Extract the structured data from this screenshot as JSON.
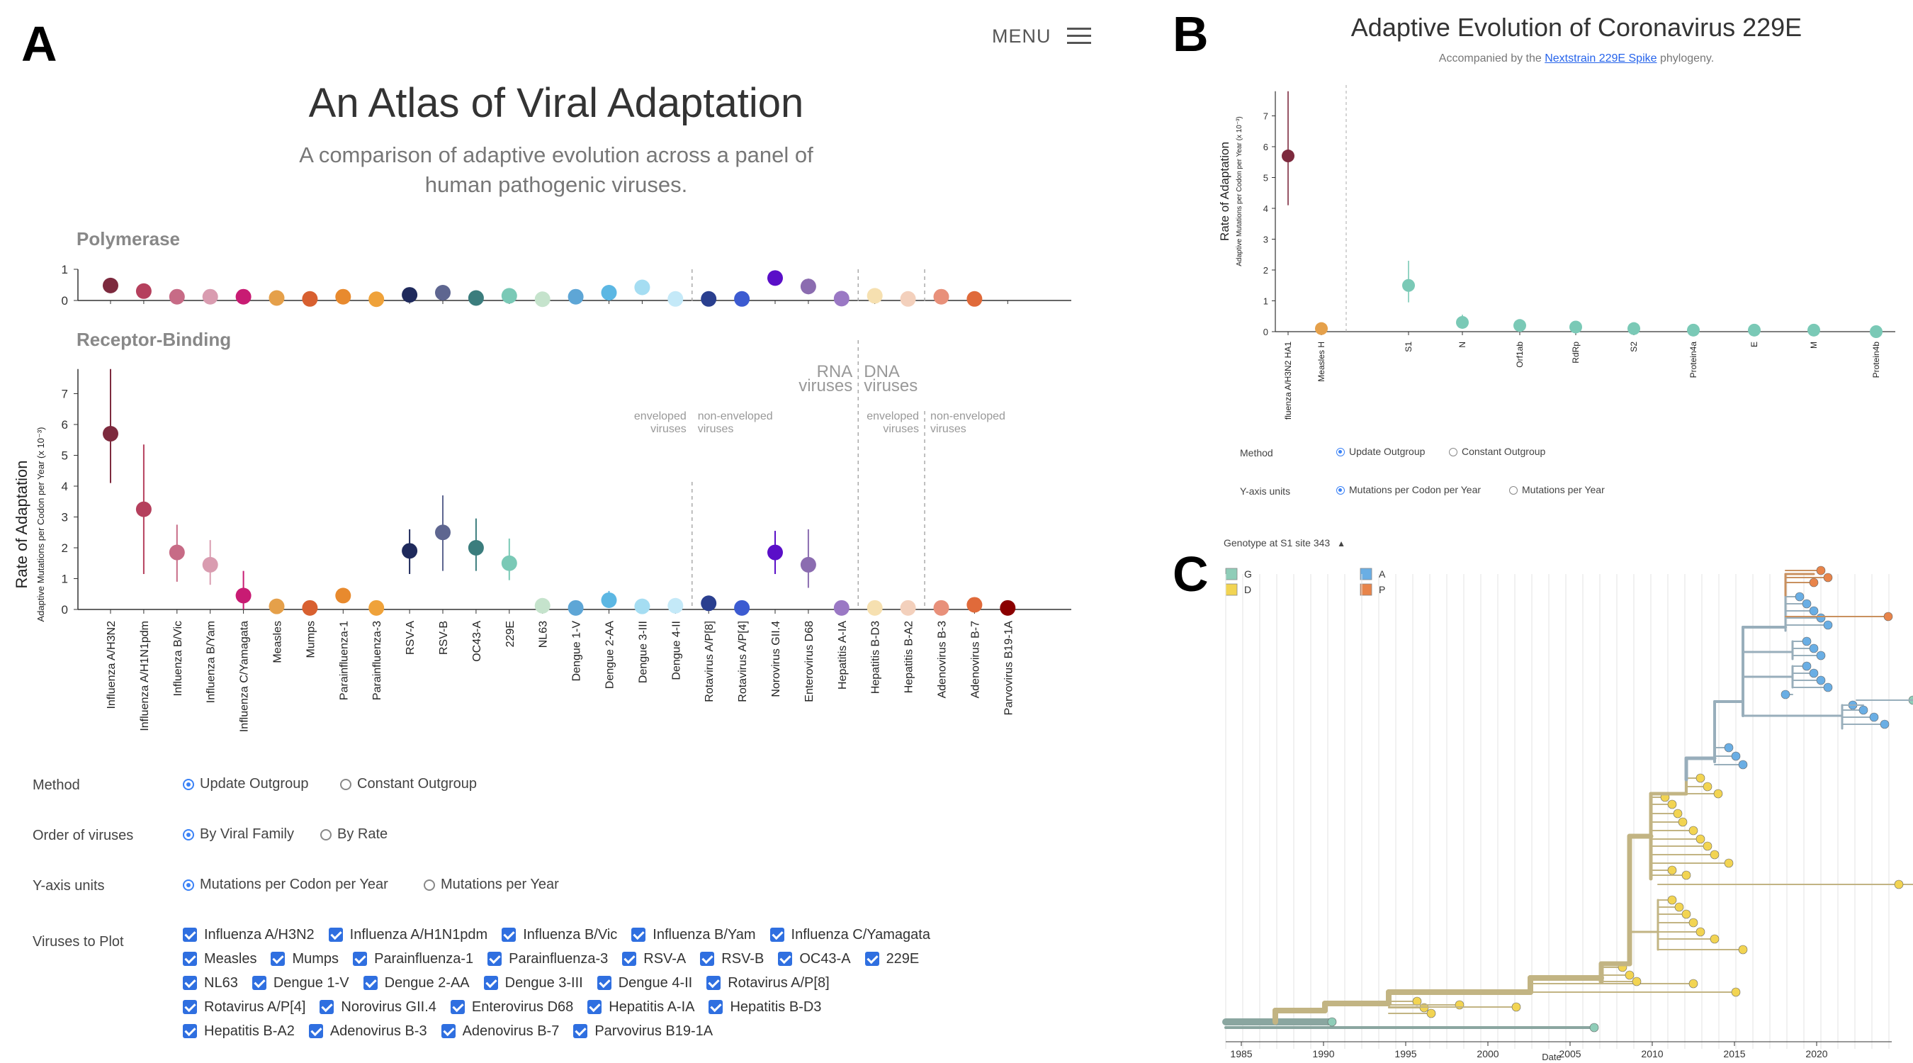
{
  "panel_a": {
    "letter": "A",
    "menu_label": "MENU",
    "title": "An Atlas of Viral Adaptation",
    "subtitle_line1": "A comparison of adaptive evolution across a panel of",
    "subtitle_line2": "human pathogenic viruses.",
    "controls": {
      "method": {
        "label": "Method",
        "options": [
          "Update Outgroup",
          "Constant Outgroup"
        ],
        "selected": 0
      },
      "order": {
        "label": "Order of viruses",
        "options": [
          "By Viral Family",
          "By Rate"
        ],
        "selected": 0
      },
      "yunits": {
        "label": "Y-axis units",
        "options": [
          "Mutations per Codon per Year",
          "Mutations per Year"
        ],
        "selected": 0
      },
      "viruses_label": "Viruses to Plot",
      "virus_rows": [
        [
          "Influenza A/H3N2",
          "Influenza A/H1N1pdm",
          "Influenza B/Vic",
          "Influenza B/Yam",
          "Influenza C/Yamagata"
        ],
        [
          "Measles",
          "Mumps",
          "Parainfluenza-1",
          "Parainfluenza-3",
          "RSV-A",
          "RSV-B",
          "OC43-A",
          "229E"
        ],
        [
          "NL63",
          "Dengue 1-V",
          "Dengue 2-AA",
          "Dengue 3-III",
          "Dengue 4-II",
          "Rotavirus A/P[8]"
        ],
        [
          "Rotavirus A/P[4]",
          "Norovirus GII.4",
          "Enterovirus D68",
          "Hepatitis A-IA",
          "Hepatitis B-D3"
        ],
        [
          "Hepatitis B-A2",
          "Adenovirus B-3",
          "Adenovirus B-7",
          "Parvovirus B19-1A"
        ]
      ]
    }
  },
  "panel_b": {
    "letter": "B",
    "title": "Adaptive Evolution of Coronavirus 229E",
    "subtitle_prefix": "Accompanied by the ",
    "subtitle_link": "Nextstrain 229E Spike",
    "subtitle_suffix": " phylogeny.",
    "controls": {
      "method": {
        "label": "Method",
        "options": [
          "Update Outgroup",
          "Constant Outgroup"
        ],
        "selected": 0
      },
      "yunits": {
        "label": "Y-axis units",
        "options": [
          "Mutations per Codon per Year",
          "Mutations per Year"
        ],
        "selected": 0
      }
    }
  },
  "panel_c": {
    "letter": "C",
    "legend_title": "Genotype at S1 site 343",
    "legend_items": [
      {
        "label": "G",
        "color": "#8fcdb8"
      },
      {
        "label": "D",
        "color": "#f2d452"
      },
      {
        "label": "A",
        "color": "#6aaee4"
      },
      {
        "label": "P",
        "color": "#e8844a"
      }
    ],
    "x_label": "Date",
    "x_ticks": [
      "1985",
      "1990",
      "1995",
      "2000",
      "2005",
      "2010",
      "2015",
      "2020"
    ]
  },
  "chart_data": [
    {
      "id": "atlas-polymerase",
      "type": "scatter",
      "title": "Polymerase",
      "ylim": [
        0,
        1
      ],
      "yticks": [
        "0",
        "1"
      ],
      "categories": [
        "Influenza A/H3N2",
        "Influenza A/H1N1pdm",
        "Influenza B/Vic",
        "Influenza B/Yam",
        "Influenza C/Yamagata",
        "Measles",
        "Mumps",
        "Parainfluenza-1",
        "Parainfluenza-3",
        "RSV-A",
        "RSV-B",
        "OC43-A",
        "229E",
        "NL63",
        "Dengue 1-V",
        "Dengue 2-AA",
        "Dengue 3-III",
        "Dengue 4-II",
        "Rotavirus A/P[8]",
        "Rotavirus A/P[4]",
        "Norovirus GII.4",
        "Enterovirus D68",
        "Hepatitis A-IA",
        "Hepatitis B-D3",
        "Hepatitis B-A2",
        "Adenovirus B-3",
        "Adenovirus B-7",
        "Parvovirus B19-1A"
      ],
      "values": [
        0.48,
        0.3,
        0.12,
        0.12,
        0.12,
        0.08,
        0.05,
        0.12,
        0.04,
        0.18,
        0.25,
        0.08,
        0.15,
        0.04,
        0.12,
        0.25,
        0.42,
        0.05,
        0.05,
        0.05,
        0.72,
        0.45,
        0.06,
        0.15,
        0.05,
        0.12,
        0.05,
        null
      ],
      "errors": [
        0.2,
        0.2,
        0,
        0,
        0,
        0,
        0,
        0,
        0,
        0,
        0,
        0,
        0,
        0,
        0,
        0,
        0.2,
        0,
        0,
        0,
        0.35,
        0.5,
        0,
        0,
        0,
        0,
        0,
        0
      ],
      "colors": [
        "#7d2a3e",
        "#b5405d",
        "#c76b86",
        "#d99cb0",
        "#c81b73",
        "#e5a04a",
        "#d86030",
        "#e88a2e",
        "#efa23a",
        "#1f2a5c",
        "#5e6690",
        "#3b7d7d",
        "#7ac9b6",
        "#c5e3cc",
        "#5ea6d6",
        "#5cb7e3",
        "#a5ddf2",
        "#c4e9f8",
        "#2a3f8f",
        "#3c5bd1",
        "#5a0fc8",
        "#8b6cb0",
        "#9a78c4",
        "#f6e0b0",
        "#f3d0bc",
        "#e8907a",
        "#e06a3a",
        "#8b0000"
      ]
    },
    {
      "id": "atlas-receptor",
      "type": "scatter",
      "title": "Receptor-Binding",
      "ylabel": "Rate of Adaptation",
      "ylabel_sub": "Adaptive Mutations per Codon per Year (x 10⁻³)",
      "ylim": [
        0,
        7.8
      ],
      "yticks": [
        "0",
        "1",
        "2",
        "3",
        "4",
        "5",
        "6",
        "7"
      ],
      "values": [
        5.7,
        3.25,
        1.85,
        1.45,
        0.45,
        0.1,
        0.05,
        0.45,
        0.05,
        1.9,
        2.5,
        2.0,
        1.5,
        0.12,
        0.05,
        0.3,
        0.1,
        0.12,
        0.2,
        0.05,
        1.85,
        1.45,
        0.05,
        0.05,
        0.05,
        0.05,
        0.15,
        0.05
      ],
      "err_low": [
        4.1,
        1.15,
        0.9,
        0.8,
        0,
        0,
        0,
        0,
        0,
        1.15,
        1.25,
        1.25,
        0.95,
        0,
        0,
        0.05,
        0,
        0,
        0,
        0,
        1.15,
        0.7,
        0,
        0,
        0,
        0,
        0,
        0
      ],
      "err_high": [
        7.8,
        5.35,
        2.75,
        2.25,
        1.25,
        0,
        0,
        0,
        0,
        2.6,
        3.7,
        2.95,
        2.3,
        0,
        0,
        0.6,
        0,
        0,
        0,
        0,
        2.55,
        2.6,
        0,
        0,
        0,
        0,
        0,
        0
      ],
      "annotations": {
        "rna": "RNA",
        "rna2": "viruses",
        "dna": "DNA",
        "dna2": "viruses",
        "env1": "enveloped",
        "env2": "viruses",
        "nenv1": "non-enveloped",
        "nenv2": "viruses"
      }
    },
    {
      "id": "coronavirus-229e",
      "type": "scatter",
      "ylabel": "Rate of Adaptation",
      "ylabel_sub": "Adaptive Mutations per Codon per Year (x 10⁻³)",
      "ylim": [
        0,
        7.8
      ],
      "yticks": [
        "0",
        "1",
        "2",
        "3",
        "4",
        "5",
        "6",
        "7"
      ],
      "categories": [
        "fluenza A/H3N2 HA1",
        "Measles H",
        "S1",
        "N",
        "Orf1ab",
        "RdRp",
        "S2",
        "Protein4a",
        "E",
        "M",
        "Protein4b"
      ],
      "values": [
        5.7,
        0.1,
        1.5,
        0.3,
        0.2,
        0.15,
        0.1,
        0.05,
        0.05,
        0.05,
        0.0
      ],
      "err_low": [
        4.1,
        0,
        0.95,
        0.1,
        0,
        0,
        0,
        0,
        0,
        0,
        0
      ],
      "err_high": [
        7.8,
        0,
        2.3,
        0.55,
        0,
        0,
        0.3,
        0,
        0,
        0,
        0
      ],
      "colors": [
        "#7d2a3e",
        "#e5a04a",
        "#7ac9b6",
        "#7ac9b6",
        "#7ac9b6",
        "#7ac9b6",
        "#7ac9b6",
        "#7ac9b6",
        "#7ac9b6",
        "#7ac9b6",
        "#7ac9b6"
      ]
    }
  ]
}
